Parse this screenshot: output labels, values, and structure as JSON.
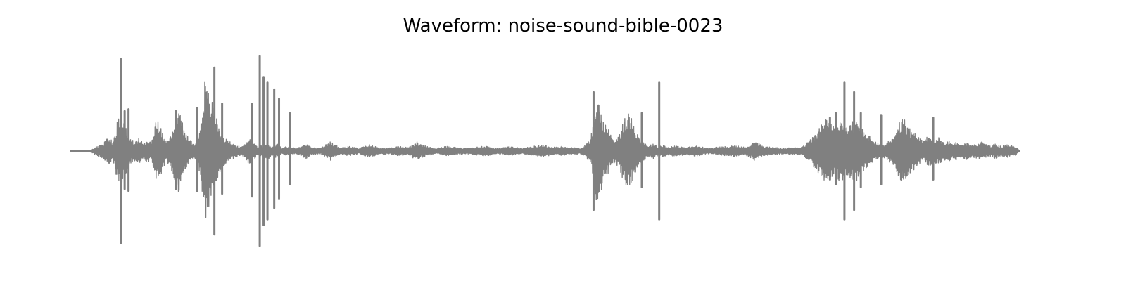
{
  "chart_data": {
    "type": "line",
    "title": "Waveform: noise-sound-bible-0023",
    "xlabel": "",
    "ylabel": "",
    "axes_visible": false,
    "grid": false,
    "color": "#808080",
    "ylim": [
      -1.0,
      1.0
    ],
    "xlim": [
      0.0,
      1.0
    ],
    "envelope": {
      "x": [
        0.0,
        0.02,
        0.028,
        0.035,
        0.04,
        0.045,
        0.05,
        0.053,
        0.056,
        0.06,
        0.064,
        0.068,
        0.072,
        0.076,
        0.08,
        0.085,
        0.09,
        0.095,
        0.1,
        0.104,
        0.108,
        0.111,
        0.113,
        0.116,
        0.12,
        0.124,
        0.128,
        0.132,
        0.135,
        0.138,
        0.14,
        0.143,
        0.147,
        0.15,
        0.153,
        0.156,
        0.158,
        0.16,
        0.163,
        0.166,
        0.17,
        0.174,
        0.178,
        0.182,
        0.186,
        0.19,
        0.195,
        0.2,
        0.205,
        0.21,
        0.215,
        0.22,
        0.225,
        0.23,
        0.235,
        0.24,
        0.245,
        0.25,
        0.26,
        0.27,
        0.28,
        0.29,
        0.3,
        0.31,
        0.32,
        0.33,
        0.34,
        0.35,
        0.36,
        0.37,
        0.38,
        0.39,
        0.4,
        0.41,
        0.42,
        0.43,
        0.44,
        0.45,
        0.46,
        0.47,
        0.48,
        0.49,
        0.5,
        0.51,
        0.52,
        0.53,
        0.54,
        0.545,
        0.55,
        0.555,
        0.56,
        0.565,
        0.57,
        0.575,
        0.58,
        0.585,
        0.59,
        0.595,
        0.6,
        0.605,
        0.61,
        0.615,
        0.62,
        0.625,
        0.63,
        0.64,
        0.65,
        0.66,
        0.67,
        0.68,
        0.69,
        0.7,
        0.71,
        0.72,
        0.73,
        0.74,
        0.75,
        0.76,
        0.77,
        0.78,
        0.785,
        0.79,
        0.795,
        0.8,
        0.805,
        0.81,
        0.815,
        0.82,
        0.825,
        0.83,
        0.835,
        0.84,
        0.845,
        0.85,
        0.855,
        0.86,
        0.865,
        0.87,
        0.875,
        0.88,
        0.885,
        0.89,
        0.895,
        0.9,
        0.905,
        0.91,
        0.915,
        0.92,
        0.925,
        0.93,
        0.935,
        0.94,
        0.945,
        0.95,
        0.955,
        0.96,
        0.965,
        0.97,
        0.975,
        0.98,
        0.985,
        0.99,
        0.995,
        1.0
      ],
      "amplitude": [
        0.0,
        0.0,
        0.05,
        0.08,
        0.15,
        0.1,
        0.35,
        0.4,
        0.3,
        0.2,
        0.12,
        0.1,
        0.15,
        0.08,
        0.12,
        0.1,
        0.35,
        0.25,
        0.12,
        0.15,
        0.3,
        0.4,
        0.45,
        0.35,
        0.2,
        0.15,
        0.08,
        0.1,
        0.25,
        0.6,
        0.75,
        0.65,
        0.55,
        0.45,
        0.35,
        0.25,
        0.2,
        0.15,
        0.12,
        0.1,
        0.08,
        0.06,
        0.04,
        0.08,
        0.15,
        0.1,
        0.05,
        0.06,
        0.1,
        0.04,
        0.08,
        0.03,
        0.05,
        0.04,
        0.03,
        0.05,
        0.08,
        0.04,
        0.03,
        0.1,
        0.04,
        0.05,
        0.03,
        0.07,
        0.04,
        0.03,
        0.05,
        0.04,
        0.1,
        0.05,
        0.03,
        0.05,
        0.04,
        0.03,
        0.04,
        0.06,
        0.03,
        0.04,
        0.05,
        0.03,
        0.05,
        0.07,
        0.04,
        0.05,
        0.04,
        0.03,
        0.12,
        0.55,
        0.45,
        0.3,
        0.2,
        0.12,
        0.2,
        0.35,
        0.4,
        0.3,
        0.15,
        0.1,
        0.06,
        0.08,
        0.05,
        0.07,
        0.04,
        0.06,
        0.05,
        0.04,
        0.06,
        0.03,
        0.04,
        0.05,
        0.06,
        0.04,
        0.1,
        0.05,
        0.04,
        0.03,
        0.04,
        0.05,
        0.15,
        0.3,
        0.35,
        0.28,
        0.3,
        0.35,
        0.25,
        0.3,
        0.35,
        0.25,
        0.2,
        0.15,
        0.1,
        0.06,
        0.08,
        0.12,
        0.15,
        0.3,
        0.35,
        0.25,
        0.2,
        0.15,
        0.1,
        0.18,
        0.12,
        0.15,
        0.1,
        0.12,
        0.08,
        0.1,
        0.07,
        0.09,
        0.06,
        0.08,
        0.1,
        0.07,
        0.06,
        0.08,
        0.05,
        0.07,
        0.06,
        0.05,
        0.0
      ]
    },
    "peaks": [
      {
        "x": 0.053,
        "max": 0.97,
        "min": -0.97
      },
      {
        "x": 0.057,
        "max": 0.42,
        "min": -0.4
      },
      {
        "x": 0.061,
        "max": 0.44,
        "min": -0.42
      },
      {
        "x": 0.11,
        "max": 0.42,
        "min": -0.4
      },
      {
        "x": 0.132,
        "max": 0.45,
        "min": -0.42
      },
      {
        "x": 0.15,
        "max": 0.88,
        "min": -0.88
      },
      {
        "x": 0.158,
        "max": 0.5,
        "min": -0.45
      },
      {
        "x": 0.189,
        "max": 0.5,
        "min": -0.48
      },
      {
        "x": 0.197,
        "max": 1.0,
        "min": -1.0
      },
      {
        "x": 0.201,
        "max": 0.78,
        "min": -0.78
      },
      {
        "x": 0.205,
        "max": 0.72,
        "min": -0.72
      },
      {
        "x": 0.212,
        "max": 0.65,
        "min": -0.6
      },
      {
        "x": 0.217,
        "max": 0.55,
        "min": -0.5
      },
      {
        "x": 0.228,
        "max": 0.4,
        "min": -0.35
      },
      {
        "x": 0.543,
        "max": 0.62,
        "min": -0.62
      },
      {
        "x": 0.548,
        "max": 0.48,
        "min": -0.42
      },
      {
        "x": 0.593,
        "max": 0.4,
        "min": -0.38
      },
      {
        "x": 0.611,
        "max": 0.72,
        "min": -0.72
      },
      {
        "x": 0.788,
        "max": 0.35,
        "min": -0.3
      },
      {
        "x": 0.794,
        "max": 0.4,
        "min": -0.35
      },
      {
        "x": 0.803,
        "max": 0.72,
        "min": -0.72
      },
      {
        "x": 0.813,
        "max": 0.62,
        "min": -0.62
      },
      {
        "x": 0.82,
        "max": 0.4,
        "min": -0.38
      },
      {
        "x": 0.841,
        "max": 0.38,
        "min": -0.35
      },
      {
        "x": 0.895,
        "max": 0.35,
        "min": -0.3
      }
    ]
  }
}
